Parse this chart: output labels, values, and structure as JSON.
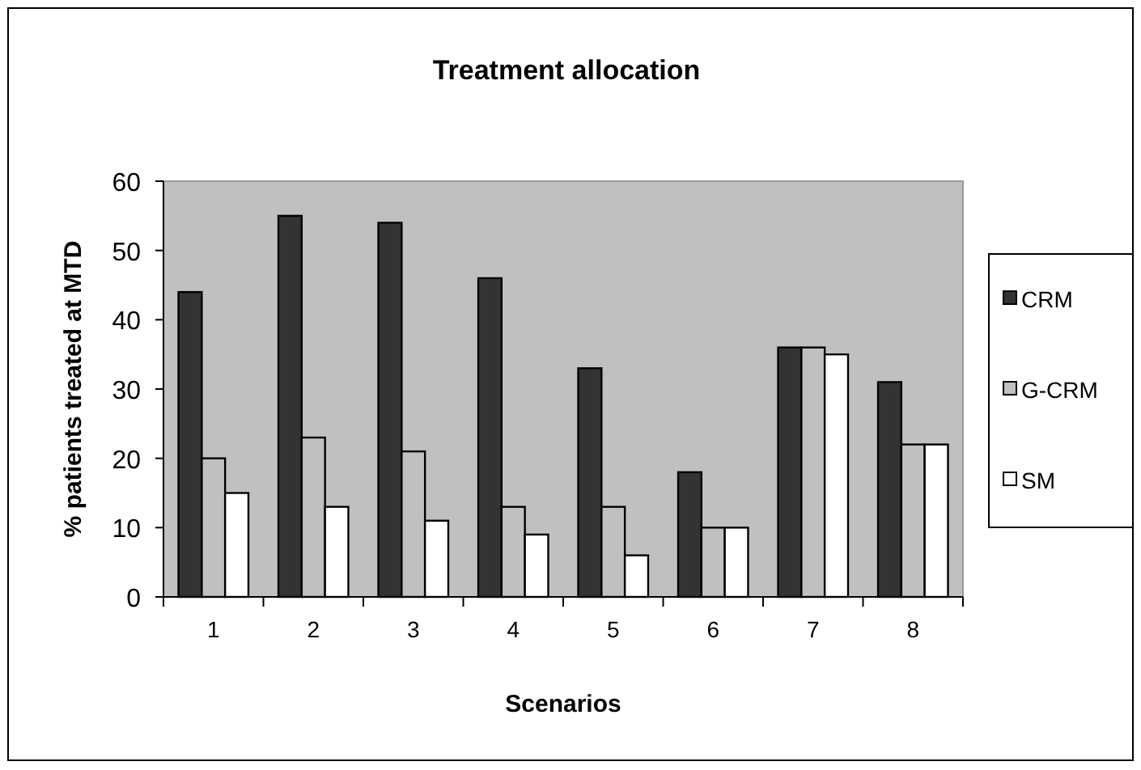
{
  "chart_data": {
    "type": "bar",
    "title": "Treatment allocation",
    "xlabel": "Scenarios",
    "ylabel": "% patients treated  at MTD",
    "categories": [
      "1",
      "2",
      "3",
      "4",
      "5",
      "6",
      "7",
      "8"
    ],
    "series": [
      {
        "name": "CRM",
        "color": "#333333",
        "values": [
          44,
          55,
          54,
          46,
          33,
          18,
          36,
          31
        ]
      },
      {
        "name": "G-CRM",
        "color": "#c0c0c0",
        "values": [
          20,
          23,
          21,
          13,
          13,
          10,
          36,
          22
        ]
      },
      {
        "name": "SM",
        "color": "#ffffff",
        "values": [
          15,
          13,
          11,
          9,
          6,
          10,
          35,
          22
        ]
      }
    ],
    "ylim": [
      0,
      60
    ],
    "yticks": [
      0,
      10,
      20,
      30,
      40,
      50,
      60
    ],
    "grid": false,
    "legend": "right"
  }
}
